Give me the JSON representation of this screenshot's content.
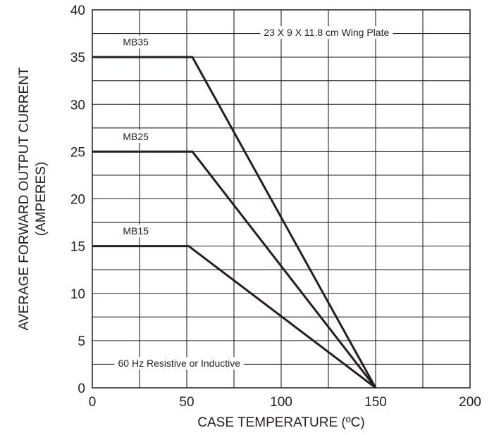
{
  "chart_data": {
    "type": "line",
    "title": "",
    "xlabel": "CASE TEMPERATURE (ºC)",
    "ylabel_line1": "AVERAGE FORWARD OUTPUT CURRENT",
    "ylabel_line2": "(AMPERES)",
    "xlim": [
      0,
      200
    ],
    "ylim": [
      0,
      40
    ],
    "x_ticks": [
      0,
      50,
      100,
      150,
      200
    ],
    "y_ticks": [
      0,
      5,
      10,
      15,
      20,
      25,
      30,
      35,
      40
    ],
    "x_tick_labels": [
      "0",
      "50",
      "100",
      "150",
      "200"
    ],
    "y_tick_labels": [
      "0",
      "5",
      "10",
      "15",
      "20",
      "25",
      "30",
      "35",
      "40"
    ],
    "grid": true,
    "x_grid_step": 25,
    "y_grid_step": 2.5,
    "legend": "none",
    "series": [
      {
        "name": "MB35",
        "x": [
          0,
          53,
          150
        ],
        "y": [
          35,
          35,
          0
        ]
      },
      {
        "name": "MB25",
        "x": [
          0,
          53,
          150
        ],
        "y": [
          25,
          25,
          0
        ]
      },
      {
        "name": "MB15",
        "x": [
          0,
          51,
          150
        ],
        "y": [
          15,
          15,
          0
        ]
      }
    ],
    "annotations": {
      "top": "23 X 9 X 11.8 cm Wing Plate",
      "bottom": "60 Hz Resistive or Inductive"
    },
    "colors": {
      "line": "#231f20",
      "grid": "#231f20",
      "background": "#ffffff"
    }
  }
}
